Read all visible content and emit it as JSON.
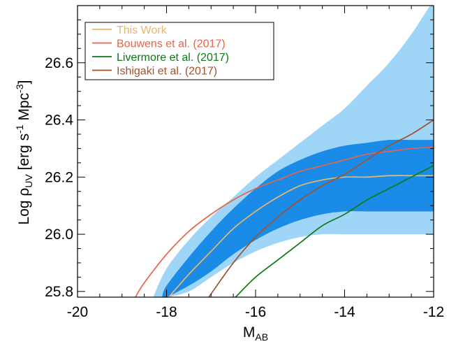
{
  "chart_data": {
    "type": "line",
    "xlabel_main": "M",
    "xlabel_sub": "AB",
    "ylabel": {
      "pre": "Log ρ",
      "sub1": "UV",
      "mid": " [erg s",
      "sup1": "-1",
      "mid2": " Mpc",
      "sup2": "-3",
      "post": "]"
    },
    "xlim": [
      -20,
      -12
    ],
    "ylim": [
      25.78,
      26.8
    ],
    "x_ticks": [
      -20,
      -18,
      -16,
      -14,
      -12
    ],
    "x_tick_labels": [
      "-20",
      "-18",
      "-16",
      "-14",
      "-12"
    ],
    "y_ticks": [
      25.8,
      26.0,
      26.2,
      26.4,
      26.6
    ],
    "y_tick_labels": [
      "25.8",
      "26.0",
      "26.2",
      "26.4",
      "26.6"
    ],
    "legend_position": "top-left",
    "colors": {
      "band_outer": "#9fd6f7",
      "band_inner": "#1a8be6",
      "this_work": "#e8b86a",
      "bouwens": "#e8634a",
      "livermore": "#0a7a14",
      "ishigaki": "#a0522d"
    },
    "bands": {
      "outer": {
        "x": [
          -18.3,
          -18,
          -17.5,
          -17,
          -16.5,
          -16,
          -15.5,
          -15,
          -14.5,
          -14,
          -13.5,
          -13,
          -12.5,
          -12
        ],
        "lower": [
          25.78,
          25.78,
          25.8,
          25.85,
          25.9,
          25.94,
          25.97,
          25.99,
          26.0,
          26.0,
          26.0,
          26.0,
          26.0,
          26.0
        ],
        "upper": [
          25.78,
          25.88,
          25.98,
          26.06,
          26.13,
          26.2,
          26.26,
          26.32,
          26.38,
          26.44,
          26.52,
          26.6,
          26.7,
          26.82
        ]
      },
      "inner": {
        "x": [
          -18.1,
          -18,
          -17.5,
          -17,
          -16.5,
          -16,
          -15.5,
          -15,
          -14.5,
          -14,
          -13.5,
          -13,
          -12.5,
          -12
        ],
        "lower": [
          25.78,
          25.78,
          25.82,
          25.87,
          25.93,
          25.98,
          26.02,
          26.05,
          26.07,
          26.08,
          26.08,
          26.08,
          26.08,
          26.08
        ],
        "upper": [
          25.78,
          25.82,
          25.92,
          26.01,
          26.09,
          26.16,
          26.22,
          26.26,
          26.29,
          26.31,
          26.32,
          26.33,
          26.33,
          26.33
        ]
      }
    },
    "series": [
      {
        "name": "This Work",
        "color": "#e8b86a",
        "x": [
          -17.95,
          -17.5,
          -17,
          -16.5,
          -16,
          -15.5,
          -15,
          -14.5,
          -14,
          -13.5,
          -13,
          -12.5,
          -12
        ],
        "y": [
          25.78,
          25.86,
          25.94,
          26.02,
          26.08,
          26.13,
          26.17,
          26.19,
          26.2,
          26.2,
          26.205,
          26.205,
          26.205
        ]
      },
      {
        "name": "Bouwens et al. (2017)",
        "color": "#e8634a",
        "x": [
          -18.7,
          -18.5,
          -18,
          -17.5,
          -17,
          -16.5,
          -16,
          -15.5,
          -15,
          -14.5,
          -14,
          -13.5,
          -13,
          -12.5,
          -12
        ],
        "y": [
          25.78,
          25.83,
          25.93,
          26.01,
          26.07,
          26.12,
          26.16,
          26.19,
          26.22,
          26.24,
          26.26,
          26.28,
          26.29,
          26.3,
          26.305
        ]
      },
      {
        "name": "Livermore et al. (2017)",
        "color": "#0a7a14",
        "x": [
          -16.45,
          -16,
          -15.5,
          -15,
          -14.5,
          -14,
          -13.5,
          -13,
          -12.5,
          -12
        ],
        "y": [
          25.78,
          25.85,
          25.91,
          25.97,
          26.03,
          26.07,
          26.12,
          26.16,
          26.2,
          26.24
        ]
      },
      {
        "name": "Ishigaki et al. (2017)",
        "color": "#a0522d",
        "x": [
          -17.05,
          -16.5,
          -16,
          -15.5,
          -15,
          -14.5,
          -14,
          -13.5,
          -13,
          -12.5,
          -12
        ],
        "y": [
          25.78,
          25.9,
          25.99,
          26.06,
          26.12,
          26.17,
          26.21,
          26.26,
          26.31,
          26.35,
          26.4
        ]
      }
    ]
  }
}
